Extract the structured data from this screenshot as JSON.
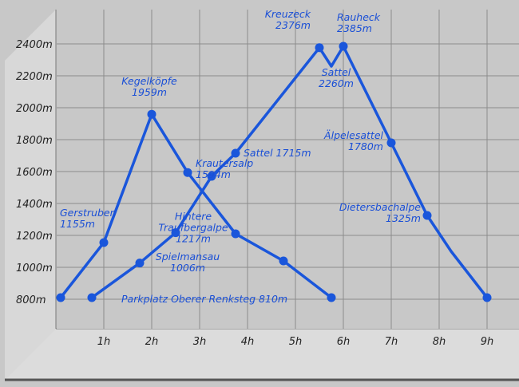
{
  "chart_data": {
    "type": "line",
    "title": "",
    "xlabel": "",
    "ylabel": "",
    "xlim": [
      0,
      9
    ],
    "ylim": [
      700,
      2500
    ],
    "x_ticks": [
      "1h",
      "2h",
      "3h",
      "4h",
      "5h",
      "6h",
      "7h",
      "8h",
      "9h"
    ],
    "y_ticks": [
      "800m",
      "1000m",
      "1200m",
      "1400m",
      "1600m",
      "1800m",
      "2000m",
      "2200m",
      "2400m"
    ],
    "grid": true,
    "line_color": "#1a56db",
    "series": [
      {
        "points": [
          {
            "x": 0.1,
            "y": 810
          },
          {
            "x": 1.0,
            "y": 1155,
            "label": [
              "Gerstruben",
              "1155m"
            ],
            "dx": -55,
            "dy": -33
          },
          {
            "x": 2.0,
            "y": 1959,
            "label": [
              "Kegelköpfe",
              "1959m"
            ],
            "dx": -3,
            "dy": -37,
            "anchor": "middle"
          },
          {
            "x": 2.75,
            "y": 1594,
            "label": [
              "Krautersalp",
              "1594m"
            ],
            "dx": 10,
            "dy": -7
          },
          {
            "x": 3.75,
            "y": 1210
          },
          {
            "x": 4.75,
            "y": 1040
          },
          {
            "x": 5.75,
            "y": 810
          }
        ]
      },
      {
        "points": [
          {
            "x": 0.75,
            "y": 810,
            "label": [
              "Parkplatz Oberer Renksteg 810m"
            ],
            "dx": 37,
            "dy": 6
          },
          {
            "x": 1.75,
            "y": 1027
          },
          {
            "x": 2.5,
            "y": 1217,
            "label": [
              "Hintere",
              "Traufbergalpe",
              "1217m"
            ],
            "dx": 22,
            "dy": -16,
            "anchor": "middle"
          },
          {
            "x": 3.25,
            "y": 1570
          },
          {
            "x": 3.75,
            "y": 1715,
            "label": [
              "Sattel 1715m"
            ],
            "dx": 10,
            "dy": 4
          },
          {
            "x": 5.5,
            "y": 2376,
            "label": [
              "Kreuzeck",
              "2376m"
            ],
            "dx": -11,
            "dy": -38,
            "anchor": "end"
          },
          {
            "x": 5.75,
            "y": 2260,
            "label": [
              "Sattel",
              "2260m"
            ],
            "dx": 6,
            "dy": 12,
            "anchor": "middle"
          },
          {
            "x": 6.0,
            "y": 2385,
            "label": [
              "Rauheck",
              "2385m"
            ],
            "dx": -8,
            "dy": -32
          },
          {
            "x": 7.0,
            "y": 1780,
            "label": [
              "Älpelesattel",
              "1780m"
            ],
            "dx": -10,
            "dy": -5,
            "anchor": "end"
          },
          {
            "x": 7.75,
            "y": 1325,
            "label": [
              "Dietersbachalpe",
              "1325m"
            ],
            "dx": -8,
            "dy": -6,
            "anchor": "end"
          },
          {
            "x": 8.25,
            "y": 1100
          },
          {
            "x": 9.0,
            "y": 810
          }
        ]
      }
    ],
    "free_labels": [
      {
        "x": 3.0,
        "y": 1006,
        "lines": [
          "Spielmansau",
          "1006m"
        ]
      }
    ]
  }
}
